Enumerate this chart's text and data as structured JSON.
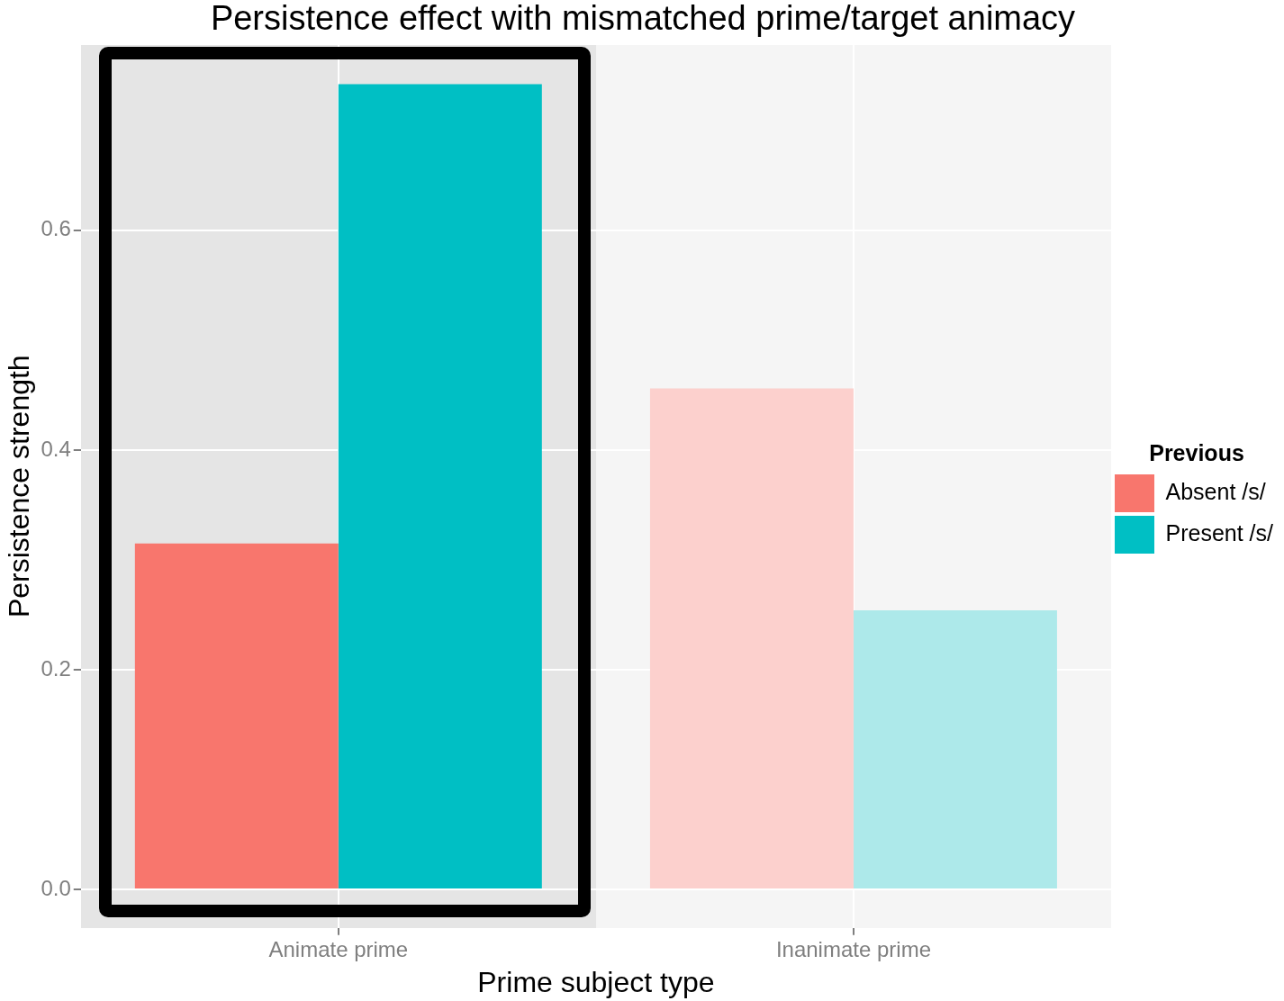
{
  "chart_data": {
    "type": "bar",
    "title": "Persistence effect with mismatched prime/target animacy",
    "xlabel": "Prime subject type",
    "ylabel": "Persistence strength",
    "legend_title": "Previous",
    "categories": [
      "Animate prime",
      "Inanimate prime"
    ],
    "series": [
      {
        "name": "Absent /s/",
        "color": "#f8766d",
        "colors": [
          "#f8766d",
          "#fcd0cd"
        ],
        "values": [
          0.315,
          0.456
        ]
      },
      {
        "name": "Present /s/",
        "color": "#00bfc4",
        "colors": [
          "#00bfc4",
          "#ade9ea"
        ],
        "values": [
          0.733,
          0.254
        ]
      }
    ],
    "ylim": [
      -0.035,
      0.769
    ],
    "yticks": [
      {
        "value": 0,
        "label": "0.0"
      },
      {
        "value": 0.2,
        "label": "0.2"
      },
      {
        "value": 0.4,
        "label": "0.4"
      },
      {
        "value": 0.6,
        "label": "0.6"
      }
    ],
    "grid": true,
    "legend": "right"
  }
}
